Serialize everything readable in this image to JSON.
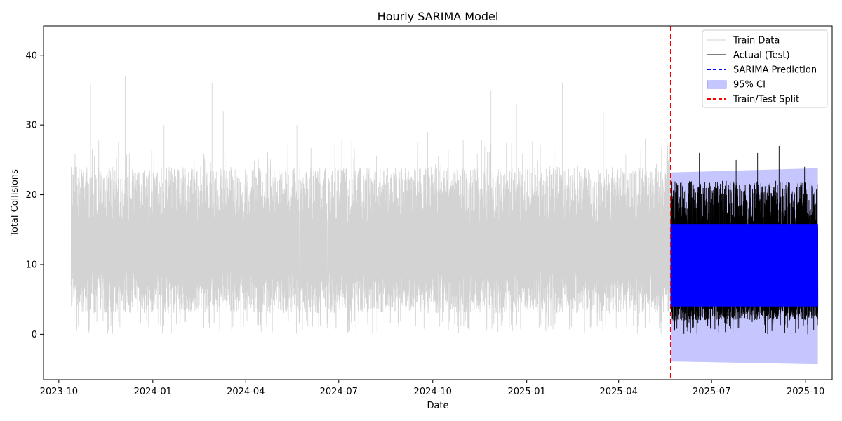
{
  "chart_data": {
    "type": "line",
    "title": "Hourly SARIMA Model",
    "xlabel": "Date",
    "ylabel": "Total Collisions",
    "xlim": [
      "2023-09-16",
      "2025-10-27"
    ],
    "ylim": [
      -6.5,
      44.2
    ],
    "x_ticks": [
      "2023-10",
      "2024-01",
      "2024-04",
      "2024-07",
      "2024-10",
      "2025-01",
      "2025-04",
      "2025-07",
      "2025-10"
    ],
    "y_ticks": [
      0,
      10,
      20,
      30,
      40
    ],
    "grid": false,
    "legend_position": "top-right",
    "split_date": "2025-05-22",
    "series": [
      {
        "name": "Train Data",
        "color": "#d3d3d3",
        "style": "solid",
        "start": "2023-10-13",
        "end": "2025-05-22",
        "typical_range": [
          3,
          22
        ],
        "min": 0,
        "max": 42,
        "peaks": [
          {
            "x": "2023-11-01",
            "y": 36
          },
          {
            "x": "2023-11-26",
            "y": 42
          },
          {
            "x": "2023-12-05",
            "y": 37
          },
          {
            "x": "2024-01-12",
            "y": 30
          },
          {
            "x": "2024-02-28",
            "y": 36
          },
          {
            "x": "2024-03-10",
            "y": 32
          },
          {
            "x": "2024-05-21",
            "y": 30
          },
          {
            "x": "2024-07-04",
            "y": 28
          },
          {
            "x": "2024-09-26",
            "y": 29
          },
          {
            "x": "2024-11-27",
            "y": 35
          },
          {
            "x": "2024-12-22",
            "y": 33
          },
          {
            "x": "2025-02-05",
            "y": 36
          },
          {
            "x": "2025-03-17",
            "y": 32
          },
          {
            "x": "2025-04-27",
            "y": 28
          }
        ]
      },
      {
        "name": "Actual (Test)",
        "color": "#000000",
        "style": "solid",
        "start": "2025-05-22",
        "end": "2025-10-13",
        "typical_range": [
          2,
          22
        ],
        "min": 0,
        "max": 27,
        "peaks": [
          {
            "x": "2025-06-19",
            "y": 26
          },
          {
            "x": "2025-07-25",
            "y": 25
          },
          {
            "x": "2025-08-15",
            "y": 26
          },
          {
            "x": "2025-09-05",
            "y": 27
          },
          {
            "x": "2025-09-30",
            "y": 24
          }
        ]
      },
      {
        "name": "SARIMA Prediction",
        "color": "#0000ff",
        "style": "dashed",
        "start": "2025-05-22",
        "end": "2025-10-13",
        "range": [
          4,
          15.8
        ]
      },
      {
        "name": "95% CI",
        "color": "#0000ff",
        "style": "band",
        "start": "2025-05-22",
        "end": "2025-10-13",
        "upper_start": 23.2,
        "upper_end": 23.8,
        "lower_start": -3.9,
        "lower_end": -4.3
      },
      {
        "name": "Train/Test Split",
        "color": "#ff0000",
        "style": "dashed-vertical",
        "x": "2025-05-22"
      }
    ]
  }
}
